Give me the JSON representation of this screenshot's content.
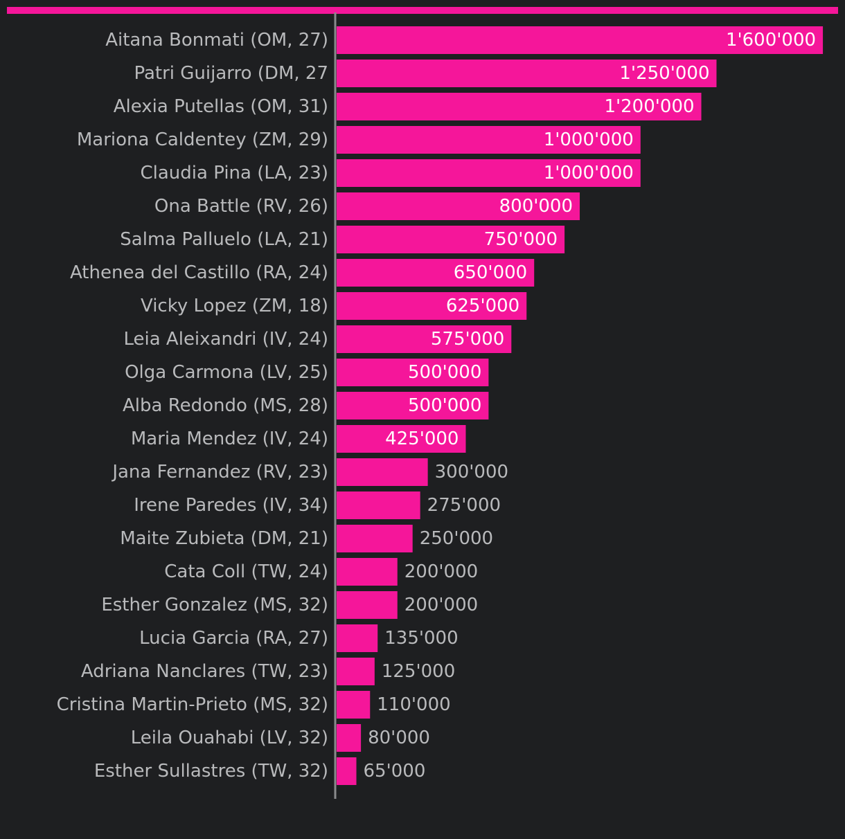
{
  "colors": {
    "background": "#1e1f21",
    "bar": "#f5169a",
    "label": "#b9babc",
    "value_inside": "#ffffff",
    "axis": "#8a8b8d"
  },
  "chart_data": {
    "type": "bar",
    "orientation": "horizontal",
    "title": "",
    "xlabel": "",
    "ylabel": "",
    "xlim": [
      0,
      1650000
    ],
    "grid": false,
    "categories": [
      "Aitana Bonmati (OM, 27)",
      "Patri Guijarro (DM, 27",
      "Alexia Putellas (OM, 31)",
      "Mariona Caldentey (ZM, 29)",
      "Claudia Pina (LA, 23)",
      "Ona Battle (RV, 26)",
      "Salma Palluelo (LA, 21)",
      "Athenea del Castillo (RA, 24)",
      "Vicky Lopez (ZM, 18)",
      "Leia Aleixandri (IV, 24)",
      "Olga Carmona (LV, 25)",
      "Alba Redondo (MS, 28)",
      "Maria Mendez (IV, 24)",
      "Jana Fernandez (RV, 23)",
      "Irene Paredes (IV, 34)",
      "Maite Zubieta (DM, 21)",
      "Cata Coll (TW, 24)",
      "Esther Gonzalez (MS, 32)",
      "Lucia Garcia (RA, 27)",
      "Adriana Nanclares (TW, 23)",
      "Cristina Martin-Prieto (MS, 32)",
      "Leila Ouahabi (LV, 32)",
      "Esther Sullastres (TW, 32)"
    ],
    "values": [
      1600000,
      1250000,
      1200000,
      1000000,
      1000000,
      800000,
      750000,
      650000,
      625000,
      575000,
      500000,
      500000,
      425000,
      300000,
      275000,
      250000,
      200000,
      200000,
      135000,
      125000,
      110000,
      80000,
      65000
    ],
    "value_labels": [
      "1'600'000",
      "1'250'000",
      "1'200'000",
      "1'000'000",
      "1'000'000",
      "800'000",
      "750'000",
      "650'000",
      "625'000",
      "575'000",
      "500'000",
      "500'000",
      "425'000",
      "300'000",
      "275'000",
      "250'000",
      "200'000",
      "200'000",
      "135'000",
      "125'000",
      "110'000",
      "80'000",
      "65'000"
    ]
  }
}
